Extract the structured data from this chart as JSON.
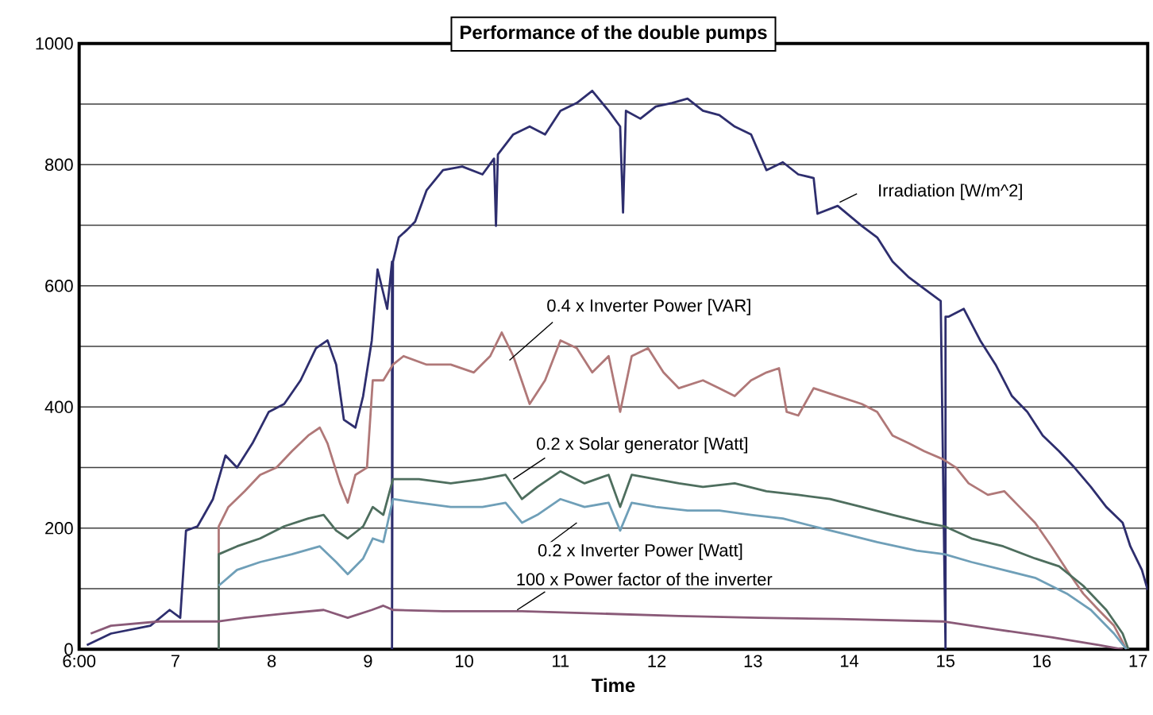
{
  "chart_data": {
    "type": "line",
    "title": "Performance of the double pumps",
    "xlabel": "Time",
    "xlim": [
      6.0,
      17.1
    ],
    "xticks": [
      {
        "value": 6,
        "label": "6:00"
      },
      7,
      8,
      9,
      10,
      11,
      12,
      13,
      14,
      15,
      16,
      17
    ],
    "ylim": [
      0,
      1000
    ],
    "yticks": [
      0,
      {
        "value": 100,
        "label": null
      },
      200,
      {
        "value": 300,
        "label": null
      },
      400,
      {
        "value": 500,
        "label": null
      },
      600,
      {
        "value": 700,
        "label": null
      },
      800,
      {
        "value": 900,
        "label": null
      },
      1000
    ],
    "grid": "y",
    "legend": false,
    "marker": "none",
    "series": [
      {
        "name": "Irradiation [W/m^2]",
        "color": "#2e2e6e",
        "x": [
          6.08,
          6.33,
          6.74,
          6.94,
          7.05,
          7.11,
          7.23,
          7.39,
          7.52,
          7.64,
          7.8,
          7.97,
          8.13,
          8.3,
          8.46,
          8.58,
          8.67,
          8.75,
          8.87,
          8.95,
          9.04,
          9.1,
          9.2,
          9.25,
          9.25,
          9.26,
          9.32,
          9.41,
          9.49,
          9.61,
          9.78,
          9.98,
          10.19,
          10.31,
          10.33,
          10.35,
          10.51,
          10.68,
          10.84,
          11.0,
          11.17,
          11.33,
          11.5,
          11.62,
          11.65,
          11.68,
          11.83,
          11.99,
          12.16,
          12.32,
          12.48,
          12.65,
          12.81,
          12.98,
          13.14,
          13.31,
          13.47,
          13.63,
          13.67,
          13.88,
          14.13,
          14.29,
          14.45,
          14.62,
          14.78,
          14.95,
          15.0,
          15.0,
          15.03,
          15.19,
          15.36,
          15.52,
          15.69,
          15.85,
          16.01,
          16.18,
          16.34,
          16.51,
          16.67,
          16.84,
          16.92,
          17.04,
          17.1
        ],
        "values": [
          7,
          26,
          39,
          65,
          52,
          196,
          203,
          248,
          320,
          300,
          340,
          392,
          405,
          444,
          497,
          510,
          470,
          379,
          366,
          418,
          510,
          627,
          562,
          640,
          0,
          640,
          680,
          693,
          706,
          758,
          791,
          797,
          784,
          810,
          699,
          817,
          850,
          863,
          850,
          889,
          902,
          922,
          889,
          863,
          721,
          889,
          876,
          896,
          902,
          909,
          889,
          882,
          863,
          850,
          791,
          804,
          784,
          778,
          719,
          732,
          699,
          680,
          640,
          614,
          595,
          575,
          0,
          549,
          549,
          562,
          510,
          470,
          418,
          392,
          353,
          327,
          300,
          268,
          235,
          209,
          170,
          131,
          98
        ]
      },
      {
        "name": "0.4 x Inverter Power [VAR]",
        "color": "#b07878",
        "x": [
          7.45,
          7.45,
          7.55,
          7.72,
          7.88,
          8.05,
          8.21,
          8.38,
          8.5,
          8.58,
          8.71,
          8.79,
          8.87,
          8.99,
          9.05,
          9.16,
          9.26,
          9.37,
          9.61,
          9.86,
          10.1,
          10.27,
          10.39,
          10.51,
          10.68,
          10.84,
          11.0,
          11.17,
          11.33,
          11.5,
          11.62,
          11.74,
          11.91,
          12.07,
          12.23,
          12.48,
          12.65,
          12.81,
          12.98,
          13.14,
          13.27,
          13.35,
          13.47,
          13.63,
          13.88,
          14.13,
          14.29,
          14.45,
          14.62,
          14.78,
          14.97,
          15.11,
          15.24,
          15.44,
          15.61,
          15.77,
          15.93,
          16.1,
          16.26,
          16.43,
          16.59,
          16.75,
          16.88
        ],
        "values": [
          0,
          203,
          235,
          261,
          288,
          300,
          327,
          353,
          366,
          340,
          274,
          242,
          288,
          300,
          444,
          444,
          470,
          484,
          470,
          470,
          457,
          484,
          523,
          484,
          405,
          444,
          510,
          497,
          457,
          484,
          392,
          484,
          497,
          457,
          431,
          444,
          431,
          418,
          444,
          457,
          464,
          392,
          386,
          431,
          418,
          405,
          392,
          353,
          340,
          327,
          314,
          300,
          274,
          255,
          261,
          235,
          209,
          170,
          131,
          92,
          65,
          39,
          0
        ]
      },
      {
        "name": "0.2 x Solar generator [Watt]",
        "color": "#4e6e5e",
        "x": [
          7.45,
          7.45,
          7.64,
          7.88,
          8.13,
          8.38,
          8.54,
          8.67,
          8.79,
          8.95,
          9.05,
          9.16,
          9.26,
          9.53,
          9.86,
          10.19,
          10.43,
          10.6,
          10.76,
          11.0,
          11.25,
          11.5,
          11.62,
          11.74,
          11.99,
          12.23,
          12.48,
          12.81,
          13.14,
          13.47,
          13.8,
          14.13,
          14.45,
          14.78,
          14.99,
          15.27,
          15.6,
          15.93,
          16.18,
          16.43,
          16.67,
          16.84,
          16.9
        ],
        "values": [
          0,
          157,
          170,
          183,
          203,
          216,
          222,
          196,
          183,
          203,
          235,
          222,
          281,
          281,
          274,
          281,
          288,
          248,
          268,
          294,
          274,
          288,
          235,
          288,
          281,
          274,
          268,
          274,
          261,
          255,
          248,
          235,
          222,
          209,
          203,
          183,
          170,
          150,
          137,
          105,
          65,
          26,
          0
        ]
      },
      {
        "name": "0.2 x Inverter Power [Watt]",
        "color": "#6f9fb8",
        "x": [
          7.45,
          7.64,
          7.88,
          8.21,
          8.5,
          8.67,
          8.79,
          8.95,
          9.05,
          9.16,
          9.26,
          9.53,
          9.86,
          10.19,
          10.43,
          10.6,
          10.76,
          11.0,
          11.25,
          11.5,
          11.62,
          11.74,
          11.99,
          12.32,
          12.65,
          12.98,
          13.31,
          13.63,
          13.96,
          14.29,
          14.7,
          14.99,
          15.27,
          15.6,
          15.93,
          16.26,
          16.51,
          16.75,
          16.88
        ],
        "values": [
          105,
          131,
          144,
          157,
          170,
          144,
          124,
          150,
          183,
          177,
          248,
          242,
          235,
          235,
          242,
          209,
          222,
          248,
          235,
          242,
          196,
          242,
          235,
          229,
          229,
          222,
          216,
          203,
          190,
          177,
          163,
          157,
          144,
          131,
          118,
          92,
          65,
          26,
          0
        ]
      },
      {
        "name": "100 x  Power factor of the inverter",
        "color": "#8a5a78",
        "x": [
          6.12,
          6.33,
          6.83,
          7.45,
          7.72,
          8.13,
          8.54,
          8.79,
          9.04,
          9.16,
          9.26,
          9.78,
          10.6,
          11.42,
          12.23,
          13.06,
          13.88,
          14.97,
          15.52,
          16.1,
          16.59,
          16.84
        ],
        "values": [
          26,
          39,
          46,
          46,
          52,
          59,
          65,
          52,
          65,
          72,
          65,
          63,
          63,
          59,
          55,
          52,
          50,
          46,
          33,
          20,
          7,
          0
        ]
      }
    ]
  }
}
